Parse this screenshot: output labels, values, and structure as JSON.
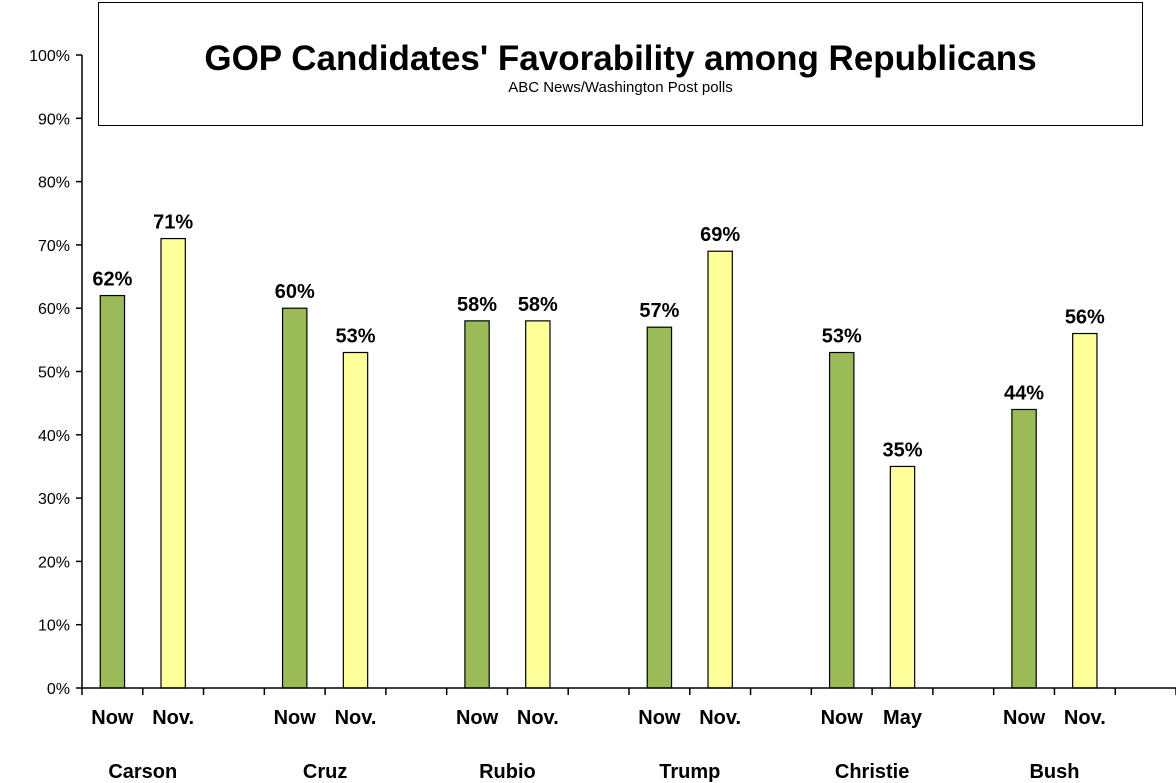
{
  "colors": {
    "now": "#9BBB59",
    "prev": "#FFFF99",
    "axis": "#000000"
  },
  "chart_data": {
    "type": "bar",
    "title": "GOP Candidates' Favorability among Republicans",
    "subtitle": "ABC News/Washington  Post polls",
    "ylim": [
      0,
      100
    ],
    "yticks": [
      "0%",
      "10%",
      "20%",
      "30%",
      "40%",
      "50%",
      "60%",
      "70%",
      "80%",
      "90%",
      "100%"
    ],
    "grid": false,
    "groups": [
      {
        "name": "Carson",
        "bars": [
          {
            "label": "Now",
            "value": 62,
            "text": "62%"
          },
          {
            "label": "Nov.",
            "value": 71,
            "text": "71%"
          }
        ]
      },
      {
        "name": "Cruz",
        "bars": [
          {
            "label": "Now",
            "value": 60,
            "text": "60%"
          },
          {
            "label": "Nov.",
            "value": 53,
            "text": "53%"
          }
        ]
      },
      {
        "name": "Rubio",
        "bars": [
          {
            "label": "Now",
            "value": 58,
            "text": "58%"
          },
          {
            "label": "Nov.",
            "value": 58,
            "text": "58%"
          }
        ]
      },
      {
        "name": "Trump",
        "bars": [
          {
            "label": "Now",
            "value": 57,
            "text": "57%"
          },
          {
            "label": "Nov.",
            "value": 69,
            "text": "69%"
          }
        ]
      },
      {
        "name": "Christie",
        "bars": [
          {
            "label": "Now",
            "value": 53,
            "text": "53%"
          },
          {
            "label": "May",
            "value": 35,
            "text": "35%"
          }
        ]
      },
      {
        "name": "Bush",
        "bars": [
          {
            "label": "Now",
            "value": 44,
            "text": "44%"
          },
          {
            "label": "Nov.",
            "value": 56,
            "text": "56%"
          }
        ]
      }
    ]
  }
}
